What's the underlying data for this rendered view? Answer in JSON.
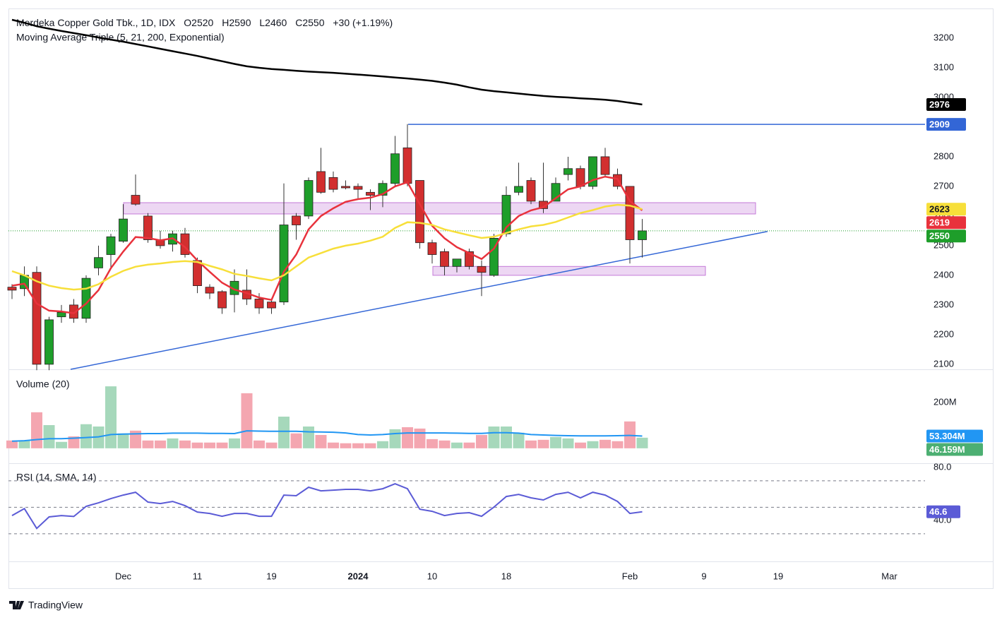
{
  "chart_data": [
    {
      "type": "candlestick",
      "title": "Merdeka Copper Gold Tbk., 1D, IDX",
      "ohlc_labels": [
        "O2520",
        "H2590",
        "L2460",
        "C2550"
      ],
      "change": "+30 (+1.19%)",
      "subtitle": "Moving Average Triple (5, 21, 200, Exponential)",
      "categories": [
        null,
        null,
        null,
        null,
        null,
        null,
        null,
        null,
        null,
        "Dec",
        null,
        null,
        null,
        null,
        null,
        "11",
        null,
        null,
        null,
        null,
        null,
        "19",
        null,
        null,
        null,
        null,
        null,
        null,
        "2024",
        null,
        null,
        null,
        null,
        null,
        "10",
        null,
        null,
        null,
        null,
        null,
        "18",
        null,
        null,
        null,
        null,
        null,
        null,
        null,
        null,
        null,
        "Feb",
        null,
        null,
        null,
        null,
        null,
        "9",
        null,
        null,
        null,
        null,
        null,
        "19",
        null,
        null,
        null,
        null,
        null,
        null,
        null,
        null,
        "Mar"
      ],
      "open": [
        2360,
        2355,
        2410,
        2100,
        2260,
        2300,
        2255,
        2425,
        2470,
        2515,
        2670,
        2600,
        2520,
        2505,
        2540,
        2450,
        2360,
        2345,
        2335,
        2350,
        2320,
        2310,
        2310,
        2600,
        2600,
        2750,
        2730,
        2700,
        2700,
        2680,
        2670,
        2710,
        2830,
        2720,
        2510,
        2480,
        2430,
        2480,
        2430,
        2400,
        2540,
        2680,
        2720,
        2650,
        2650,
        2740,
        2760,
        2700,
        2800,
        2740,
        2700,
        2520,
        null,
        null,
        null,
        null,
        null,
        null,
        null,
        null,
        null,
        null,
        null,
        null,
        null,
        null,
        null,
        null,
        null,
        null,
        null,
        null
      ],
      "high": [
        2370,
        2430,
        2430,
        2260,
        2300,
        2320,
        2400,
        2500,
        2540,
        2640,
        2740,
        2610,
        2550,
        2550,
        2560,
        2460,
        2370,
        2350,
        2420,
        2420,
        2340,
        2320,
        2710,
        2610,
        2730,
        2830,
        2750,
        2720,
        2710,
        2690,
        2720,
        2870,
        2910,
        2720,
        2520,
        2490,
        2455,
        2490,
        2450,
        2540,
        2700,
        2780,
        2730,
        2780,
        2730,
        2800,
        2770,
        2800,
        2830,
        2760,
        2700,
        2590,
        null,
        null,
        null,
        null,
        null,
        null,
        null,
        null,
        null,
        null,
        null,
        null,
        null,
        null,
        null,
        null,
        null,
        null,
        null,
        null
      ],
      "low": [
        2320,
        2330,
        2080,
        2080,
        2240,
        2240,
        2240,
        2400,
        2420,
        2510,
        2635,
        2510,
        2490,
        2480,
        2460,
        2340,
        2320,
        2270,
        2275,
        2300,
        2270,
        2270,
        2300,
        2520,
        2590,
        2675,
        2680,
        2690,
        2660,
        2620,
        2630,
        2700,
        2700,
        2490,
        2440,
        2400,
        2410,
        2420,
        2330,
        2395,
        2530,
        2670,
        2640,
        2610,
        2650,
        2720,
        2690,
        2690,
        2730,
        2690,
        2440,
        2460,
        null,
        null,
        null,
        null,
        null,
        null,
        null,
        null,
        null,
        null,
        null,
        null,
        null,
        null,
        null,
        null,
        null,
        null,
        null,
        null
      ],
      "close": [
        2350,
        2400,
        2100,
        2250,
        2275,
        2255,
        2390,
        2460,
        2530,
        2590,
        2640,
        2520,
        2500,
        2540,
        2470,
        2365,
        2340,
        2290,
        2380,
        2320,
        2290,
        2290,
        2570,
        2570,
        2720,
        2680,
        2690,
        2695,
        2690,
        2670,
        2710,
        2810,
        2710,
        2510,
        2470,
        2430,
        2455,
        2430,
        2410,
        2525,
        2670,
        2700,
        2650,
        2625,
        2710,
        2760,
        2700,
        2800,
        2740,
        2700,
        2520,
        2550,
        null,
        null,
        null,
        null,
        null,
        null,
        null,
        null,
        null,
        null,
        null,
        null,
        null,
        null,
        null,
        null,
        null,
        null,
        null,
        null
      ],
      "up_color": "#1e9e2a",
      "down_color": "#d22f2f",
      "ma_lines": [
        {
          "color": "#e8323c",
          "values": [
            2365,
            2372,
            2305,
            2281,
            2278,
            2272,
            2305,
            2350,
            2424,
            2480,
            2529,
            2526,
            2518,
            2525,
            2495,
            2450,
            2412,
            2375,
            2352,
            2340,
            2325,
            2317,
            2412,
            2470,
            2555,
            2600,
            2626,
            2648,
            2657,
            2662,
            2674,
            2700,
            2714,
            2640,
            2567,
            2525,
            2495,
            2475,
            2455,
            2490,
            2562,
            2600,
            2619,
            2630,
            2660,
            2690,
            2700,
            2721,
            2733,
            2725,
            2650,
            2619,
            null,
            null,
            null,
            null,
            null,
            null,
            null,
            null,
            null,
            null,
            null,
            null,
            null,
            null,
            null,
            null,
            null,
            null,
            null,
            null
          ]
        },
        {
          "color": "#f7df3a",
          "values": [
            2414,
            2400,
            2380,
            2365,
            2357,
            2352,
            2355,
            2370,
            2395,
            2415,
            2429,
            2436,
            2440,
            2445,
            2448,
            2445,
            2432,
            2420,
            2405,
            2398,
            2390,
            2383,
            2400,
            2430,
            2460,
            2475,
            2490,
            2500,
            2507,
            2517,
            2530,
            2560,
            2579,
            2577,
            2570,
            2555,
            2545,
            2535,
            2526,
            2530,
            2543,
            2555,
            2565,
            2570,
            2580,
            2595,
            2610,
            2620,
            2632,
            2638,
            2635,
            2623,
            null,
            null,
            null,
            null,
            null,
            null,
            null,
            null,
            null,
            null,
            null,
            null,
            null,
            null,
            null,
            null,
            null,
            null,
            null,
            null
          ]
        },
        {
          "color": "#000000",
          "values": [
            3262,
            3252,
            3240,
            3232,
            3224,
            3217,
            3210,
            3202,
            3195,
            3188,
            3180,
            3172,
            3164,
            3156,
            3148,
            3140,
            3131,
            3122,
            3113,
            3105,
            3100,
            3096,
            3093,
            3090,
            3087,
            3085,
            3083,
            3080,
            3077,
            3074,
            3071,
            3067,
            3064,
            3060,
            3056,
            3050,
            3043,
            3034,
            3026,
            3021,
            3017,
            3013,
            3009,
            3005,
            3002,
            3000,
            2997,
            2995,
            2992,
            2988,
            2982,
            2976,
            null,
            null,
            null,
            null,
            null,
            null,
            null,
            null,
            null,
            null,
            null,
            null,
            null,
            null,
            null,
            null,
            null,
            null,
            null,
            null
          ]
        }
      ],
      "resistance": 2909,
      "line_color": "#3366d6",
      "zones": [
        [
          2607,
          2645
        ],
        [
          2400,
          2430
        ]
      ],
      "zone_color": "#c47ad8",
      "trendline": [
        2083,
        2548
      ],
      "ylim": [
        2083,
        3300
      ],
      "yticks": [
        2100,
        2200,
        2300,
        2400,
        2500,
        2600,
        2700,
        2800,
        2900,
        3000,
        3100,
        3200
      ]
    },
    {
      "type": "bar",
      "title": "Volume (20)",
      "values": [
        34,
        34,
        157,
        101,
        28,
        52,
        105,
        95,
        270,
        65,
        77,
        34,
        34,
        43,
        34,
        25,
        25,
        25,
        43,
        240,
        34,
        25,
        138,
        65,
        95,
        58,
        25,
        22,
        22,
        22,
        31,
        83,
        92,
        86,
        40,
        34,
        25,
        25,
        58,
        95,
        95,
        68,
        34,
        37,
        49,
        43,
        25,
        31,
        37,
        31,
        117,
        46.159,
        null,
        null,
        null,
        null,
        null,
        null,
        null,
        null,
        null,
        null,
        null,
        null,
        null,
        null,
        null,
        null,
        null,
        null,
        null,
        null
      ],
      "value_labels": [
        null,
        null,
        null,
        null,
        null,
        null,
        null,
        null,
        null,
        null,
        null,
        null,
        null,
        null,
        null,
        null,
        null,
        null,
        null,
        null,
        null,
        null,
        null,
        null,
        null,
        null,
        null,
        null,
        null,
        null,
        null,
        null,
        null,
        null,
        null,
        null,
        null,
        null,
        null,
        null,
        null,
        null,
        null,
        null,
        null,
        null,
        null,
        null,
        null,
        null,
        null,
        "46.159M",
        null,
        null,
        null,
        null,
        null,
        null,
        null,
        null,
        null,
        null,
        null,
        null,
        null,
        null,
        null,
        null,
        null,
        null,
        null,
        null
      ],
      "up_color": "#a6d8bb",
      "down_color": "#f4a6b0",
      "label_up_color": "#4caf72",
      "ma": {
        "color": "#2196f3",
        "values": [
          31,
          33,
          38,
          42,
          42,
          44,
          47,
          50,
          60,
          62,
          63,
          64,
          64,
          66,
          66,
          66,
          65,
          65,
          64,
          76,
          75,
          74,
          74,
          74,
          72,
          71,
          70,
          67,
          60,
          58,
          60,
          64,
          67,
          67,
          67,
          67,
          66,
          65,
          65,
          68,
          68,
          66,
          60,
          58,
          56,
          55,
          54,
          54,
          54,
          55,
          56,
          53.304,
          null,
          null,
          null,
          null,
          null,
          null,
          null,
          null,
          null,
          null,
          null,
          null,
          null,
          null,
          null,
          null,
          null,
          null,
          null,
          null
        ],
        "value_labels": [
          null,
          null,
          null,
          null,
          null,
          null,
          null,
          null,
          null,
          null,
          null,
          null,
          null,
          null,
          null,
          null,
          null,
          null,
          null,
          null,
          null,
          null,
          null,
          null,
          null,
          null,
          null,
          null,
          null,
          null,
          null,
          null,
          null,
          null,
          null,
          null,
          null,
          null,
          null,
          null,
          null,
          null,
          null,
          null,
          null,
          null,
          null,
          null,
          null,
          null,
          null,
          "53.304M",
          null,
          null,
          null,
          null,
          null,
          null,
          null,
          null,
          null,
          null,
          null,
          null,
          null,
          null,
          null,
          null,
          null,
          null,
          null,
          null
        ]
      },
      "ylim": [
        -62,
        338
      ],
      "yticks": [
        {
          "value": 200,
          "label": "200M"
        },
        0
      ]
    },
    {
      "type": "line",
      "title": "RSI (14, SMA, 14)",
      "color": "#5b5bd6",
      "values": [
        43.7,
        49,
        34,
        42.7,
        43.7,
        43,
        50.7,
        53.3,
        56.5,
        59.2,
        61.3,
        53.9,
        52.8,
        54.4,
        51.2,
        46.4,
        45.3,
        43.2,
        45.3,
        45.3,
        43.2,
        43.2,
        59.2,
        58.7,
        65.1,
        62.4,
        62.9,
        63.5,
        63.5,
        62.4,
        64,
        67.7,
        64,
        48.5,
        46.9,
        43.7,
        45.3,
        45.9,
        43.2,
        50.1,
        58.1,
        59.7,
        57.1,
        55.5,
        59.7,
        61.3,
        57.1,
        61.3,
        59.2,
        54.4,
        45.3,
        46.6,
        null,
        null,
        null,
        null,
        null,
        null,
        null,
        null,
        null,
        null,
        null,
        null,
        null,
        null,
        null,
        null,
        null,
        null,
        null,
        null
      ],
      "levels": [
        70,
        50,
        30
      ],
      "ylim": [
        9.1,
        82.7
      ],
      "yticks": [
        {
          "value": 80,
          "label": "80.0"
        },
        {
          "value": 40,
          "label": "40.0"
        }
      ]
    }
  ],
  "footer": {
    "brand": "TradingView"
  }
}
